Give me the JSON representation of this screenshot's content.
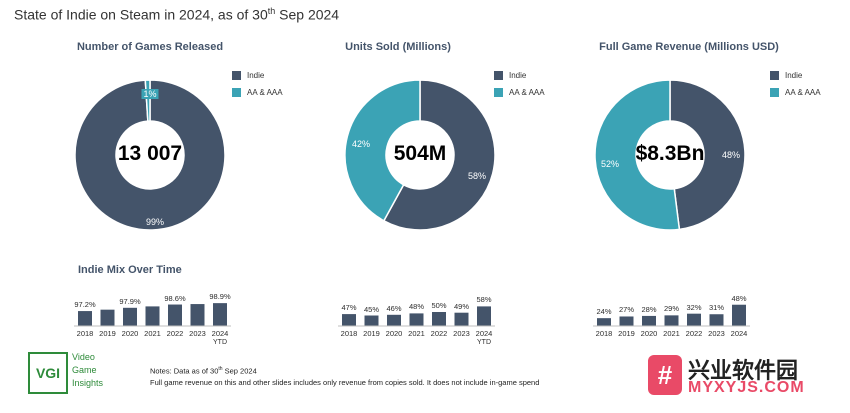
{
  "page": {
    "title_pre": "State of Indie on Steam in 2024, as of 30",
    "title_sup": "th",
    "title_post": " Sep 2024"
  },
  "colors": {
    "indie": "#44546a",
    "aa_aaa": "#3ba3b5"
  },
  "chart_data": [
    {
      "type": "pie",
      "title": "Number of Games Released",
      "center_label": "13 007",
      "series": [
        {
          "name": "Indie",
          "value": 99,
          "label": "99%"
        },
        {
          "name": "AA & AAA",
          "value": 1,
          "label": "1%"
        }
      ]
    },
    {
      "type": "pie",
      "title": "Units Sold (Millions)",
      "center_label": "504M",
      "series": [
        {
          "name": "Indie",
          "value": 58,
          "label": "58%"
        },
        {
          "name": "AA & AAA",
          "value": 42,
          "label": "42%"
        }
      ]
    },
    {
      "type": "pie",
      "title": "Full Game Revenue (Millions USD)",
      "center_label": "$8.3Bn",
      "series": [
        {
          "name": "Indie",
          "value": 48,
          "label": "48%"
        },
        {
          "name": "AA & AAA",
          "value": 52,
          "label": "52%"
        }
      ]
    },
    {
      "type": "bar",
      "title": "Indie Mix Over Time",
      "categories": [
        "2018",
        "2019",
        "2020",
        "2021",
        "2022",
        "2023",
        "2024"
      ],
      "category_sublabels": [
        "",
        "",
        "",
        "",
        "",
        "",
        "YTD"
      ],
      "values": [
        97.2,
        97.5,
        97.9,
        98.2,
        98.6,
        98.7,
        98.9
      ],
      "labels": [
        "97.2%",
        "",
        "97.9%",
        "",
        "98.6%",
        "",
        "98.9%"
      ]
    },
    {
      "type": "bar",
      "categories": [
        "2018",
        "2019",
        "2020",
        "2021",
        "2022",
        "2023",
        "2024"
      ],
      "category_sublabels": [
        "",
        "",
        "",
        "",
        "",
        "",
        "YTD"
      ],
      "values": [
        47,
        45,
        46,
        48,
        50,
        49,
        58
      ],
      "labels": [
        "47%",
        "45%",
        "46%",
        "48%",
        "50%",
        "49%",
        "58%"
      ]
    },
    {
      "type": "bar",
      "categories": [
        "2018",
        "2019",
        "2020",
        "2021",
        "2022",
        "2023",
        "2024"
      ],
      "category_sublabels": [
        "",
        "",
        "",
        "",
        "",
        "",
        ""
      ],
      "values": [
        24,
        27,
        28,
        29,
        32,
        31,
        48
      ],
      "labels": [
        "24%",
        "27%",
        "28%",
        "29%",
        "32%",
        "31%",
        "48%"
      ]
    }
  ],
  "notes": {
    "line1_pre": "Notes: Data as of 30",
    "line1_sup": "th",
    "line1_post": " Sep 2024",
    "line2": "Full game revenue on this and other slides includes only revenue from copies sold. It does not include in-game spend"
  },
  "logo": {
    "mark": "VGI",
    "line1": "Video",
    "line2": "Game",
    "line3": "Insights"
  },
  "watermark": {
    "icon": "#",
    "top": "兴业软件园",
    "bottom": "MYXYJS.COM"
  }
}
